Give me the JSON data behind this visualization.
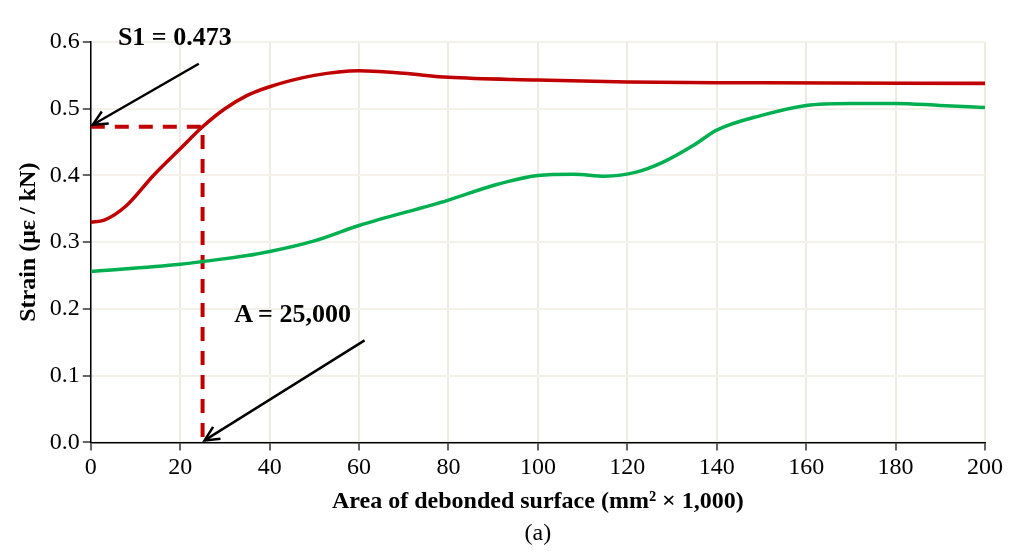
{
  "chart_data": {
    "type": "line",
    "xlabel": "Area of debonded surface (mm² × 1,000)",
    "ylabel": "Strain (με / kN)",
    "xlim": [
      0,
      200
    ],
    "xticks": [
      0,
      20,
      40,
      60,
      80,
      100,
      120,
      140,
      160,
      180,
      200
    ],
    "ylim": [
      0,
      0.6
    ],
    "yticks": [
      {
        "value": 0,
        "label": "0.0"
      },
      0.1,
      0.2,
      0.3,
      0.4,
      0.5,
      0.6
    ],
    "grid": true,
    "legend": false,
    "marker": "none",
    "series": [
      {
        "color": "#c00000",
        "x": [
          0,
          3,
          8,
          14,
          20,
          25,
          30,
          35,
          40,
          50,
          60,
          70,
          80,
          100,
          120,
          140,
          200
        ],
        "values": [
          0.33,
          0.333,
          0.355,
          0.4,
          0.44,
          0.473,
          0.5,
          0.52,
          0.533,
          0.55,
          0.557,
          0.553,
          0.547,
          0.543,
          0.54,
          0.539,
          0.538
        ]
      },
      {
        "color": "#00b050",
        "x": [
          0,
          20,
          25,
          35,
          40,
          50,
          60,
          80,
          90,
          100,
          108,
          115,
          122,
          128,
          135,
          140,
          150,
          160,
          170,
          180,
          190,
          200
        ],
        "values": [
          0.256,
          0.267,
          0.271,
          0.28,
          0.286,
          0.302,
          0.325,
          0.363,
          0.385,
          0.4,
          0.402,
          0.399,
          0.405,
          0.42,
          0.446,
          0.468,
          0.49,
          0.505,
          0.508,
          0.508,
          0.505,
          0.502
        ]
      },
      {
        "color": "#c00000",
        "line_style": "dashed",
        "x": [
          0,
          25,
          25
        ],
        "values": [
          0.473,
          0.473,
          0
        ]
      }
    ],
    "annotations": [
      {
        "text": "S1 = 0.473",
        "x": 0,
        "y": 0.473
      },
      {
        "text": "A = 25,000",
        "x": 25,
        "y": 0
      },
      "(a)"
    ]
  }
}
